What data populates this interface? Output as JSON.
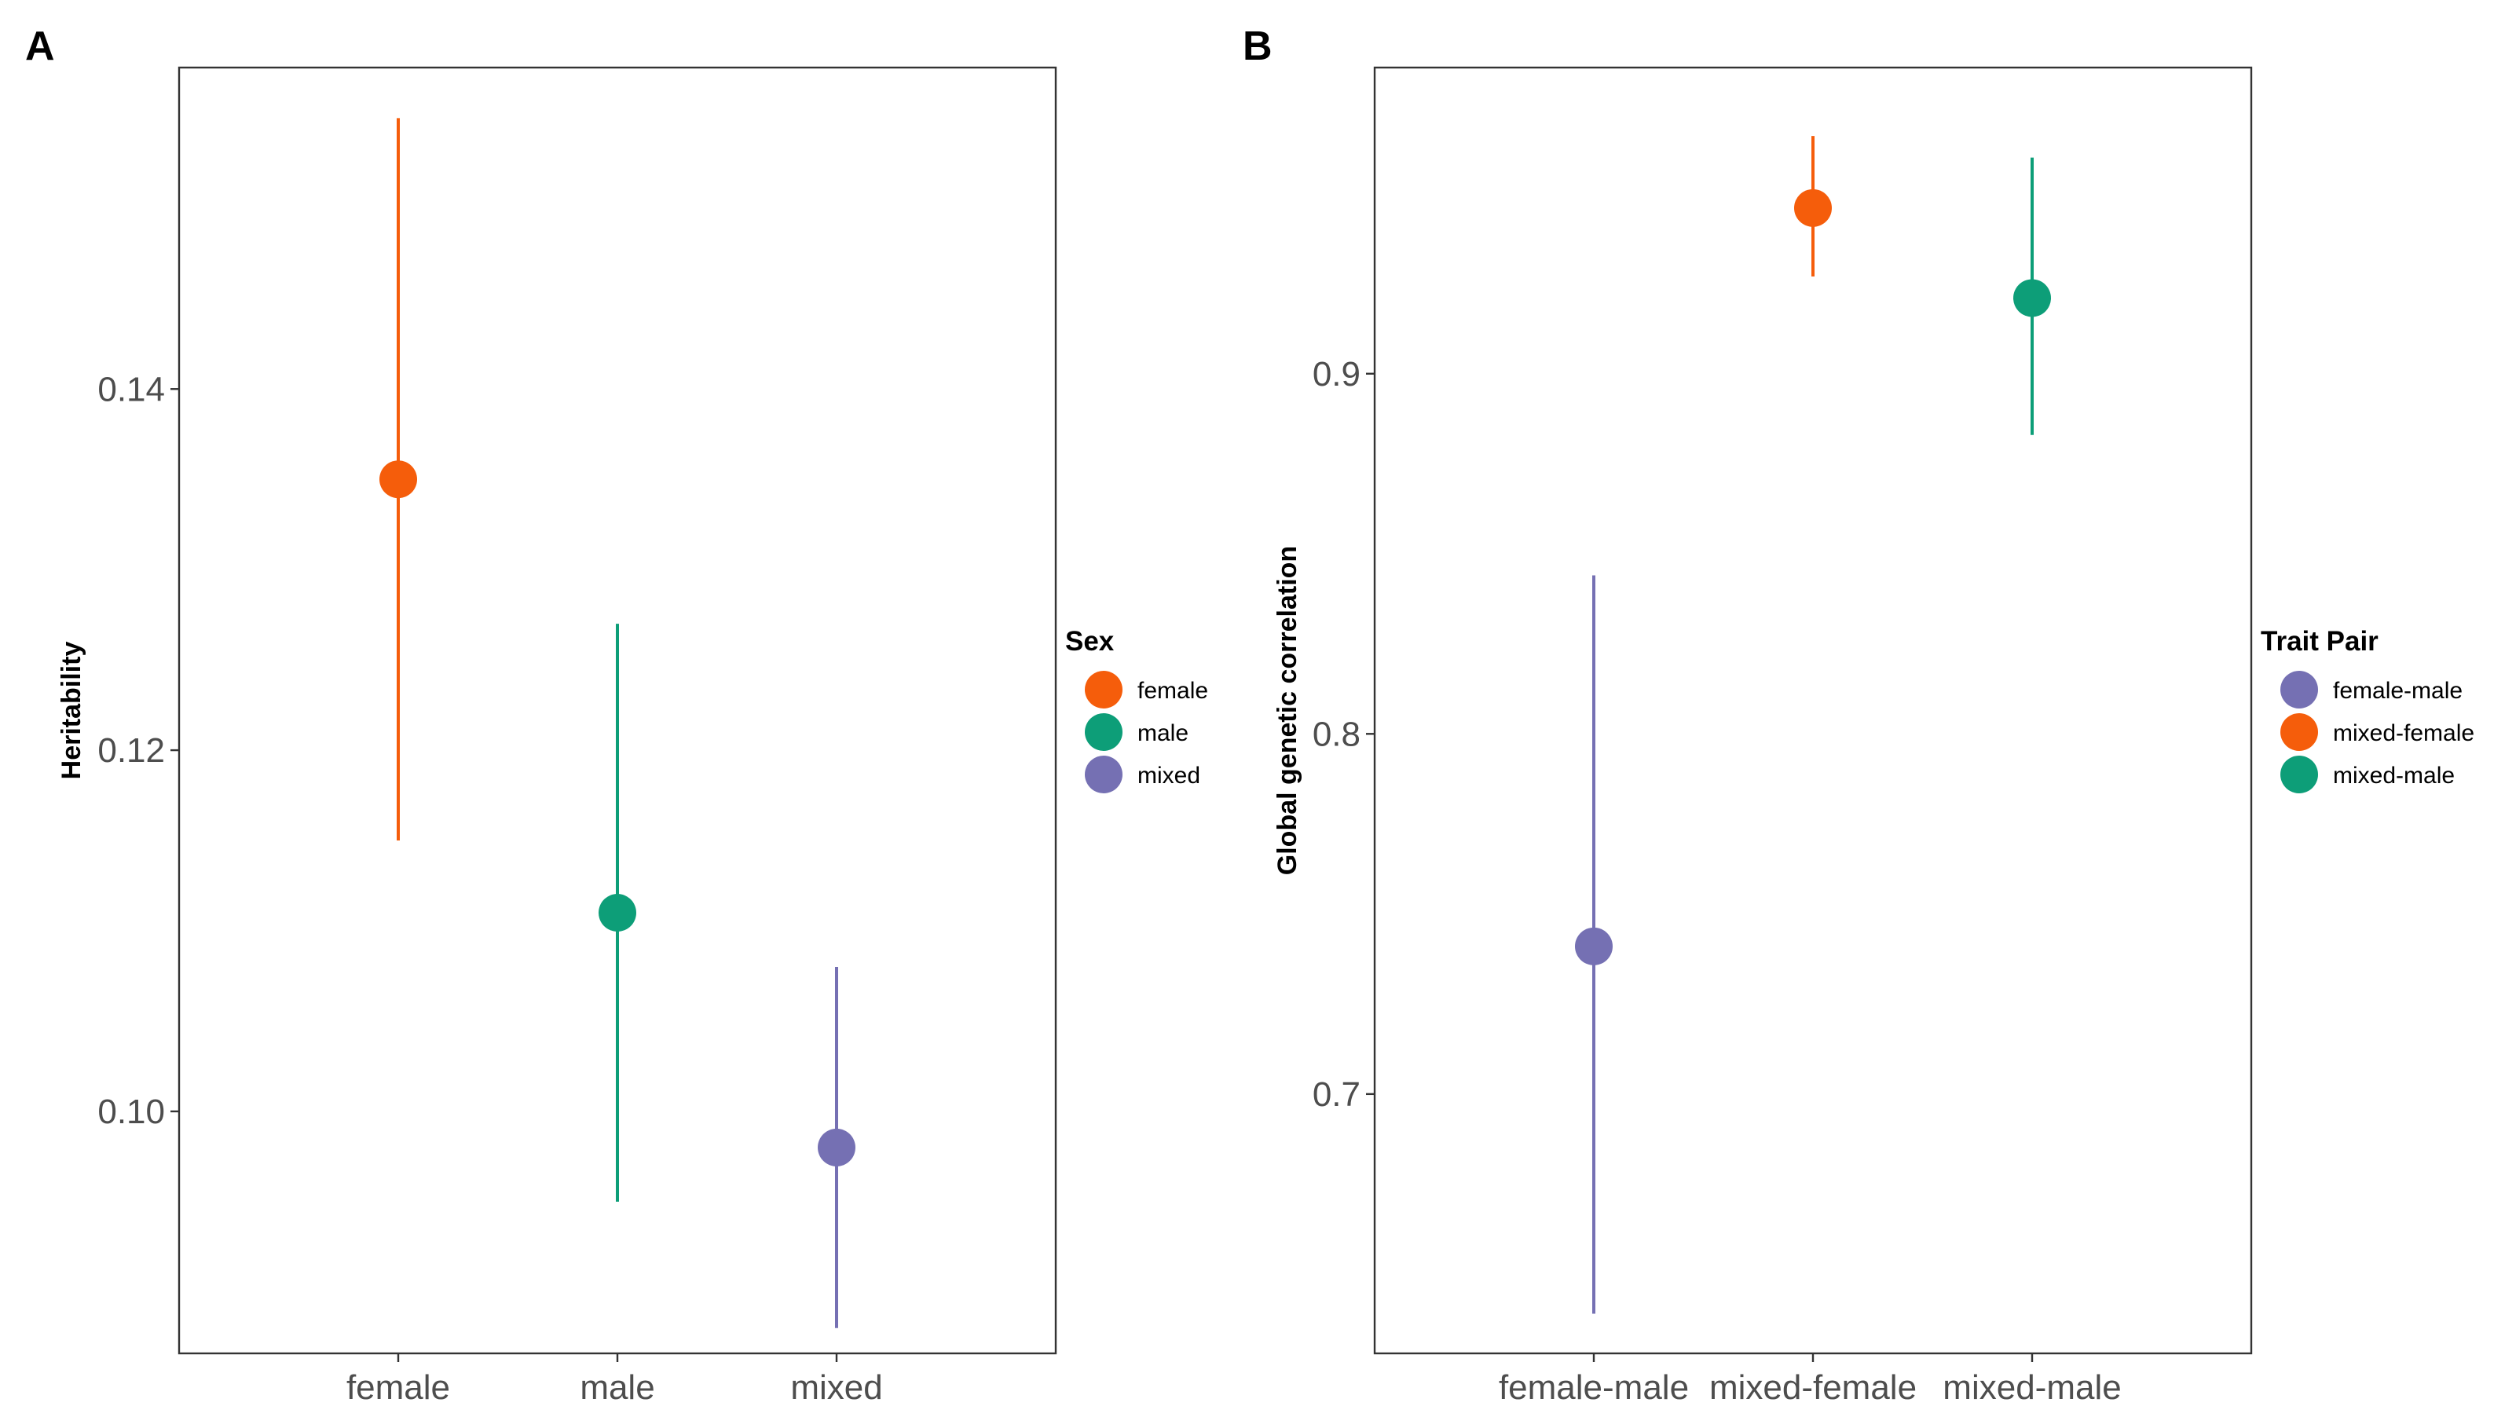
{
  "chart_data": [
    {
      "panel": "A",
      "type": "scatter",
      "subtype": "point-range",
      "xlabel": "",
      "ylabel": "Heritability",
      "categories": [
        "female",
        "male",
        "mixed"
      ],
      "ylim": [
        0.0866,
        0.1578
      ],
      "yticks": [
        0.1,
        0.12,
        0.14
      ],
      "ytick_labels": [
        "0.10",
        "0.12",
        "0.14"
      ],
      "points": [
        {
          "category": "female",
          "group": "female",
          "value": 0.135,
          "lower": 0.115,
          "upper": 0.155
        },
        {
          "category": "male",
          "group": "male",
          "value": 0.111,
          "lower": 0.095,
          "upper": 0.127
        },
        {
          "category": "mixed",
          "group": "mixed",
          "value": 0.098,
          "lower": 0.088,
          "upper": 0.108
        }
      ],
      "legend": {
        "title": "Sex",
        "position": "right",
        "entries": [
          {
            "label": "female",
            "color": "#F55D0B"
          },
          {
            "label": "male",
            "color": "#0D9E78"
          },
          {
            "label": "mixed",
            "color": "#7570B3"
          }
        ]
      }
    },
    {
      "panel": "B",
      "type": "scatter",
      "subtype": "point-range",
      "xlabel": "",
      "ylabel": "Global genetic correlation",
      "categories": [
        "female-male",
        "mixed-female",
        "mixed-male"
      ],
      "ylim": [
        0.628,
        0.985
      ],
      "yticks": [
        0.7,
        0.8,
        0.9
      ],
      "ytick_labels": [
        "0.7",
        "0.8",
        "0.9"
      ],
      "points": [
        {
          "category": "female-male",
          "group": "female-male",
          "value": 0.741,
          "lower": 0.639,
          "upper": 0.844
        },
        {
          "category": "mixed-female",
          "group": "mixed-female",
          "value": 0.946,
          "lower": 0.927,
          "upper": 0.966
        },
        {
          "category": "mixed-male",
          "group": "mixed-male",
          "value": 0.921,
          "lower": 0.883,
          "upper": 0.96
        }
      ],
      "legend": {
        "title": "Trait Pair",
        "position": "right",
        "entries": [
          {
            "label": "female-male",
            "color": "#7570B3"
          },
          {
            "label": "mixed-female",
            "color": "#F55D0B"
          },
          {
            "label": "mixed-male",
            "color": "#0D9E78"
          }
        ]
      }
    }
  ]
}
